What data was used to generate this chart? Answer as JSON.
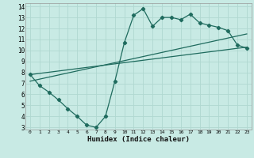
{
  "xlabel": "Humidex (Indice chaleur)",
  "ylabel": "",
  "bg_color": "#c8eae4",
  "line_color": "#1f6b5e",
  "grid_color": "#b0d8d0",
  "xlim": [
    -0.5,
    23.5
  ],
  "ylim": [
    2.8,
    14.3
  ],
  "xticks": [
    0,
    1,
    2,
    3,
    4,
    5,
    6,
    7,
    8,
    9,
    10,
    11,
    12,
    13,
    14,
    15,
    16,
    17,
    18,
    19,
    20,
    21,
    22,
    23
  ],
  "yticks": [
    3,
    4,
    5,
    6,
    7,
    8,
    9,
    10,
    11,
    12,
    13,
    14
  ],
  "line1_x": [
    0,
    1,
    2,
    3,
    4,
    5,
    6,
    7,
    8,
    9,
    10,
    11,
    12,
    13,
    14,
    15,
    16,
    17,
    18,
    19,
    20,
    21,
    22,
    23
  ],
  "line1_y": [
    7.8,
    6.8,
    6.2,
    5.5,
    4.7,
    4.0,
    3.2,
    3.0,
    4.0,
    7.2,
    10.7,
    13.2,
    13.8,
    12.2,
    13.0,
    13.0,
    12.8,
    13.3,
    12.5,
    12.3,
    12.1,
    11.8,
    10.5,
    10.2
  ],
  "line2_x": [
    0,
    23
  ],
  "line2_y": [
    7.8,
    10.3
  ],
  "line3_x": [
    0,
    23
  ],
  "line3_y": [
    7.2,
    11.5
  ]
}
